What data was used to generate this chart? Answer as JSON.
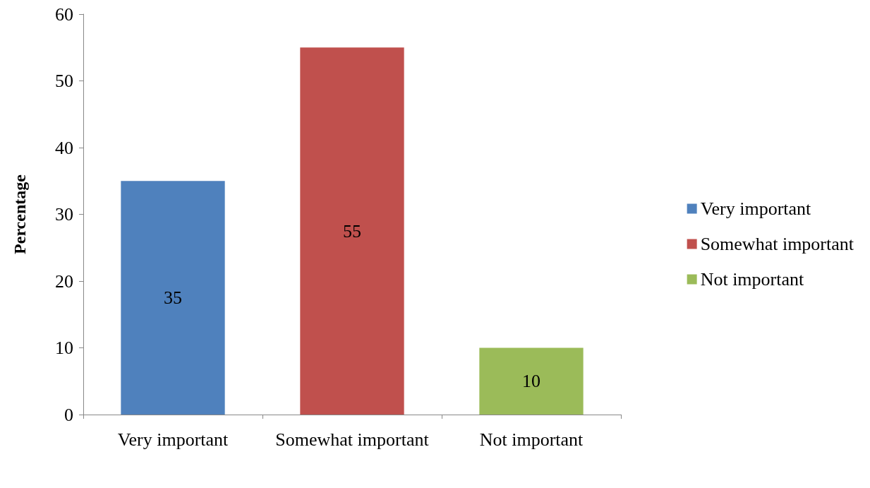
{
  "chart_data": {
    "type": "bar",
    "ylabel": "Percentage",
    "categories": [
      "Very important",
      "Somewhat important",
      "Not important"
    ],
    "series": [
      {
        "name": "Very important",
        "color": "#4f81bd",
        "values": [
          35,
          null,
          null
        ]
      },
      {
        "name": "Somewhat important",
        "color": "#c0504d",
        "values": [
          null,
          55,
          null
        ]
      },
      {
        "name": "Not important",
        "color": "#9bbb59",
        "values": [
          null,
          null,
          10
        ]
      }
    ],
    "stacked": true,
    "data_labels": true,
    "ylim": [
      0,
      60
    ],
    "yticks": [
      0,
      10,
      20,
      30,
      40,
      50,
      60
    ],
    "grid": false,
    "legend": "right"
  }
}
